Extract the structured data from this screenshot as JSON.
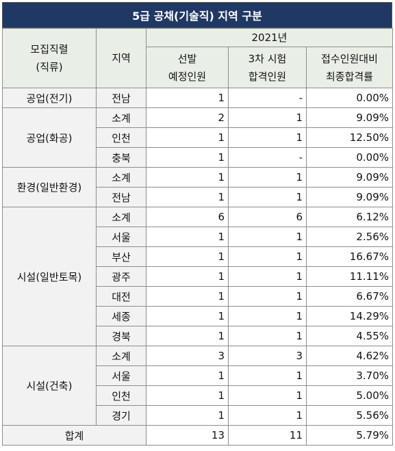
{
  "title": "5급 공채(기술직) 지역 구분",
  "header": {
    "group": [
      "모집직렬",
      "(직류)"
    ],
    "region": "지역",
    "year": "2021년",
    "columns": [
      [
        "선발",
        "예정인원"
      ],
      [
        "3차 시험",
        "합격인원"
      ],
      [
        "접수인원대비",
        "최종합격률"
      ]
    ]
  },
  "groups": [
    {
      "name": "공업(전기)",
      "rows": [
        [
          "전남",
          "1",
          "-",
          "0.00%"
        ]
      ]
    },
    {
      "name": "공업(화공)",
      "rows": [
        [
          "소계",
          "2",
          "1",
          "9.09%"
        ],
        [
          "인천",
          "1",
          "1",
          "12.50%"
        ],
        [
          "충북",
          "1",
          "-",
          "0.00%"
        ]
      ]
    },
    {
      "name": "환경(일반환경)",
      "rows": [
        [
          "소계",
          "1",
          "1",
          "9.09%"
        ],
        [
          "전남",
          "1",
          "1",
          "9.09%"
        ]
      ]
    },
    {
      "name": "시설(일반토목)",
      "rows": [
        [
          "소계",
          "6",
          "6",
          "6.12%"
        ],
        [
          "서울",
          "1",
          "1",
          "2.56%"
        ],
        [
          "부산",
          "1",
          "1",
          "16.67%"
        ],
        [
          "광주",
          "1",
          "1",
          "11.11%"
        ],
        [
          "대전",
          "1",
          "1",
          "6.67%"
        ],
        [
          "세종",
          "1",
          "1",
          "14.29%"
        ],
        [
          "경북",
          "1",
          "1",
          "4.55%"
        ]
      ]
    },
    {
      "name": "시설(건축)",
      "rows": [
        [
          "소계",
          "3",
          "3",
          "4.62%"
        ],
        [
          "서울",
          "1",
          "1",
          "3.70%"
        ],
        [
          "인천",
          "1",
          "1",
          "5.00%"
        ],
        [
          "경기",
          "1",
          "1",
          "5.56%"
        ]
      ]
    }
  ],
  "total": {
    "label": "합계",
    "values": [
      "13",
      "11",
      "5.79%"
    ]
  }
}
